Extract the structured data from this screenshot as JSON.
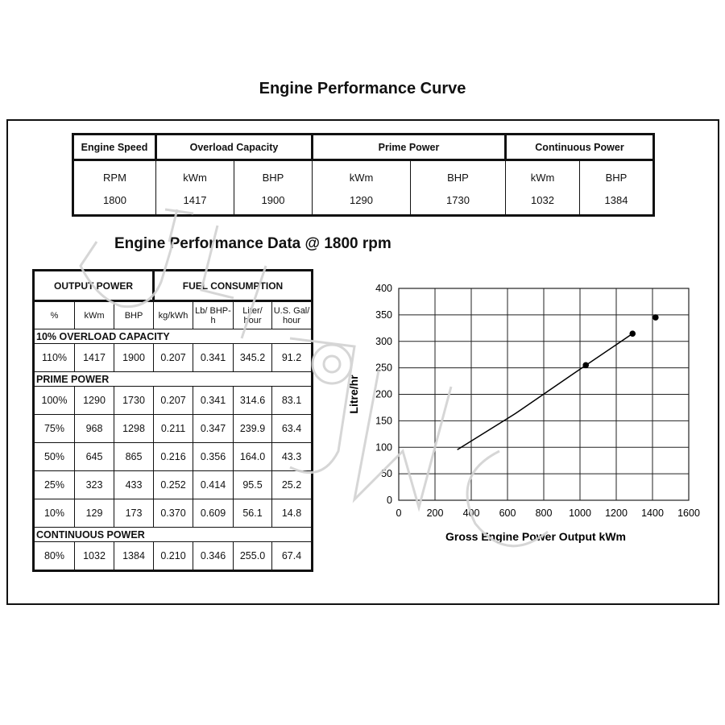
{
  "page_title": "Engine Performance Curve",
  "section_title": "Engine Performance Data @ 1800 rpm",
  "specs": {
    "headers": {
      "engine_speed": "Engine Speed",
      "overload": "Overload Capacity",
      "prime": "Prime Power",
      "continuous": "Continuous Power"
    },
    "units": [
      "RPM",
      "kWm",
      "BHP",
      "kWm",
      "BHP",
      "kWm",
      "BHP"
    ],
    "values": [
      "1800",
      "1417",
      "1900",
      "1290",
      "1730",
      "1032",
      "1384"
    ]
  },
  "perf_table": {
    "group_headers": {
      "output": "OUTPUT POWER",
      "fuel": "FUEL CONSUMPTION"
    },
    "col_headers": [
      "%",
      "kWm",
      "BHP",
      "kg/kWh",
      "Lb/ BHP-h",
      "Liter/ hour",
      "U.S. Gal/ hour"
    ],
    "sections": [
      {
        "title": "10% OVERLOAD CAPACITY",
        "rows": [
          [
            "110%",
            "1417",
            "1900",
            "0.207",
            "0.341",
            "345.2",
            "91.2"
          ]
        ]
      },
      {
        "title": "PRIME POWER",
        "rows": [
          [
            "100%",
            "1290",
            "1730",
            "0.207",
            "0.341",
            "314.6",
            "83.1"
          ],
          [
            "75%",
            "968",
            "1298",
            "0.211",
            "0.347",
            "239.9",
            "63.4"
          ],
          [
            "50%",
            "645",
            "865",
            "0.216",
            "0.356",
            "164.0",
            "43.3"
          ],
          [
            "25%",
            "323",
            "433",
            "0.252",
            "0.414",
            "95.5",
            "25.2"
          ],
          [
            "10%",
            "129",
            "173",
            "0.370",
            "0.609",
            "56.1",
            "14.8"
          ]
        ]
      },
      {
        "title": "CONTINUOUS POWER",
        "rows": [
          [
            "80%",
            "1032",
            "1384",
            "0.210",
            "0.346",
            "255.0",
            "67.4"
          ]
        ]
      }
    ]
  },
  "chart_data": {
    "type": "line",
    "title": "",
    "xlabel": "Gross Engine Power Output kWm",
    "ylabel": "Litre/hr",
    "xlim": [
      0,
      1600
    ],
    "ylim": [
      0,
      400
    ],
    "xticks": [
      0,
      200,
      400,
      600,
      800,
      1000,
      1200,
      1400,
      1600
    ],
    "yticks": [
      0,
      50,
      100,
      150,
      200,
      250,
      300,
      350,
      400
    ],
    "grid": true,
    "line": {
      "x": [
        323,
        645,
        968,
        1290
      ],
      "y": [
        95.5,
        164.0,
        239.9,
        314.6
      ]
    },
    "points": {
      "x": [
        1032,
        1290,
        1417
      ],
      "y": [
        255.0,
        314.6,
        345.2
      ]
    }
  },
  "watermark": "UTILIMC"
}
